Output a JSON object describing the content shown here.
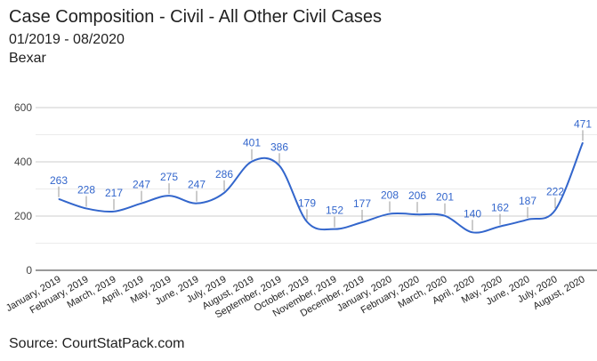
{
  "chart_data": {
    "type": "line",
    "title": "Case Composition - Civil - All Other Civil Cases",
    "subtitle": "01/2019 - 08/2020",
    "subtitle2": "Bexar",
    "source": "Source: CourtStatPack.com",
    "categories": [
      "January, 2019",
      "February, 2019",
      "March, 2019",
      "April, 2019",
      "May, 2019",
      "June, 2019",
      "July, 2019",
      "August, 2019",
      "September, 2019",
      "October, 2019",
      "November, 2019",
      "December, 2019",
      "January, 2020",
      "February, 2020",
      "March, 2020",
      "April, 2020",
      "May, 2020",
      "June, 2020",
      "July, 2020",
      "August, 2020"
    ],
    "values": [
      263,
      228,
      217,
      247,
      275,
      247,
      286,
      401,
      386,
      179,
      152,
      177,
      208,
      206,
      201,
      140,
      162,
      187,
      222,
      471
    ],
    "ylim": [
      0,
      600
    ],
    "yticks": [
      0,
      200,
      400,
      600
    ],
    "grid": true,
    "line_color": "#3366cc",
    "label_color": "#3366cc"
  }
}
